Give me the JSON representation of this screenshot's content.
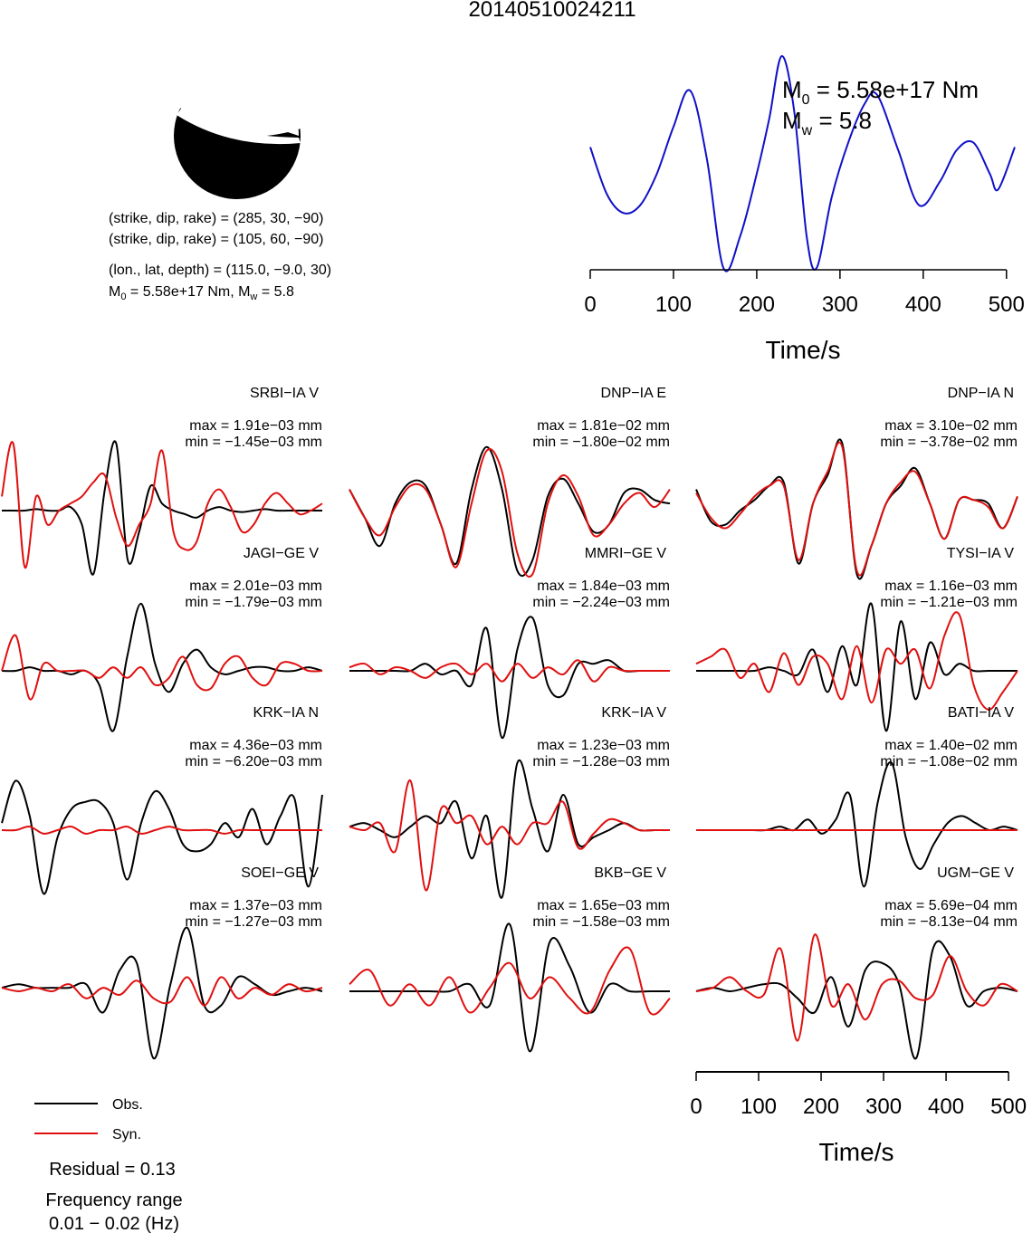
{
  "title": "20140510024211",
  "focal_mechanism": {
    "planes": [
      {
        "strike": 285,
        "dip": 30,
        "rake": -90
      },
      {
        "strike": 105,
        "dip": 60,
        "rake": -90
      }
    ],
    "plane1_text": "(strike, dip, rake) = (285, 30, −90)",
    "plane2_text": "(strike, dip, rake) = (105, 60, −90)",
    "location_text": "(lon., lat, depth) = (115.0, −9.0, 30)",
    "moment_text_m": "M",
    "moment_text_sub": "0",
    "moment_text_rest": " = 5.58e+17 Nm, M",
    "moment_text_sub2": "w",
    "moment_text_end": " = 5.8"
  },
  "stf": {
    "m0_main": "M",
    "m0_sub": "0",
    "m0_value": " = 5.58e+17 Nm",
    "mw_main": "M",
    "mw_sub": "w",
    "mw_value": " = 5.8",
    "xlabel": "Time/s",
    "color": "#1010c8"
  },
  "chart_data": [
    {
      "type": "line",
      "title": "",
      "xlabel": "Time/s",
      "ylabel": "",
      "xlim": [
        0,
        510
      ],
      "ticks": [
        0,
        100,
        200,
        300,
        400,
        500
      ],
      "series": [
        {
          "values_x": [
            0,
            20,
            40,
            60,
            80,
            100,
            120,
            140,
            160,
            180,
            200,
            215,
            230,
            245,
            260,
            272,
            290,
            310,
            330,
            345,
            370,
            395,
            420,
            440,
            460,
            480,
            490,
            510
          ],
          "values_y": [
            0.42,
            0.12,
            0.0,
            0.05,
            0.25,
            0.55,
            0.78,
            0.35,
            -0.35,
            -0.15,
            0.25,
            0.6,
            1.0,
            0.65,
            -0.15,
            -0.35,
            0.1,
            0.45,
            0.7,
            0.75,
            0.4,
            0.05,
            0.2,
            0.4,
            0.45,
            0.25,
            0.15,
            0.42
          ]
        }
      ]
    },
    {
      "type": "line",
      "xlabel": "Time/s",
      "xlim": [
        0,
        510
      ],
      "ticks": [
        0,
        100,
        200,
        300,
        400,
        500
      ],
      "legend": [
        {
          "label": "Obs.",
          "color": "#000000"
        },
        {
          "label": "Syn.",
          "color": "#e01010"
        }
      ],
      "panels": [
        {
          "station": "SRBI−IA V",
          "max": "max = 1.91e−03 mm",
          "min": "min = −1.45e−03 mm",
          "obs": [
            0,
            0,
            0,
            0.02,
            0,
            0,
            0.05,
            -0.2,
            -0.9,
            0.3,
            0.95,
            -0.7,
            -0.3,
            0.35,
            0.1,
            0,
            -0.05,
            -0.1,
            0,
            0.05,
            0,
            -0.02,
            0,
            0.02,
            0,
            0,
            0,
            0,
            0
          ],
          "syn": [
            0.2,
            0.95,
            -0.8,
            0.2,
            -0.2,
            0,
            0.1,
            0.2,
            0.4,
            0.5,
            -0.1,
            -0.5,
            -0.2,
            0.1,
            0.85,
            -0.3,
            -0.55,
            -0.45,
            0.1,
            0.3,
            0.05,
            -0.3,
            -0.2,
            0.1,
            0.25,
            0.1,
            -0.05,
            0,
            0.1
          ]
        },
        {
          "station": "DNP−IA E",
          "max": "max = 1.81e−02 mm",
          "min": "min = −1.80e−02 mm",
          "obs": [
            0.3,
            -0.1,
            -0.5,
            0.1,
            0.4,
            0.35,
            -0.2,
            -0.75,
            0.3,
            0.9,
            0.3,
            -0.85,
            -0.7,
            0.2,
            0.45,
            0.1,
            -0.3,
            -0.2,
            0.25,
            0.3,
            0.15,
            0.1
          ],
          "syn": [
            0.3,
            -0.1,
            -0.35,
            0.05,
            0.35,
            0.3,
            -0.2,
            -0.8,
            0.1,
            0.85,
            0.55,
            -0.6,
            -0.9,
            0.1,
            0.5,
            0.2,
            -0.35,
            -0.2,
            0.1,
            0.25,
            0.05,
            0.3
          ]
        },
        {
          "station": "DNP−IA N",
          "max": "max = 3.10e−02 mm",
          "min": "min = −3.78e−02 mm",
          "obs": [
            0.3,
            -0.15,
            -0.2,
            0.0,
            0.15,
            0.35,
            0.4,
            -0.75,
            0.1,
            0.5,
            0.95,
            -0.9,
            -0.5,
            0.1,
            0.35,
            0.6,
            0.1,
            -0.4,
            0.15,
            0.15,
            0.1,
            -0.25,
            0.2
          ],
          "syn": [
            0.25,
            -0.1,
            -0.25,
            -0.05,
            0.2,
            0.35,
            0.35,
            -0.7,
            0.1,
            0.55,
            0.9,
            -0.85,
            -0.5,
            0.1,
            0.4,
            0.55,
            0.1,
            -0.4,
            0.15,
            0.15,
            0.05,
            -0.25,
            0.2
          ]
        },
        {
          "station": "JAGI−GE V",
          "max": "max = 2.01e−03 mm",
          "min": "min = −1.79e−03 mm",
          "obs": [
            0,
            0,
            0.05,
            0,
            0,
            -0.05,
            0,
            -0.2,
            -0.85,
            0.2,
            0.95,
            0.1,
            -0.3,
            0.1,
            0.3,
            0.05,
            -0.05,
            0,
            0.05,
            0.05,
            0,
            0,
            0.05,
            0
          ],
          "syn": [
            0,
            0.5,
            -0.4,
            0.1,
            0,
            0,
            0,
            -0.1,
            0.05,
            -0.1,
            0.05,
            -0.2,
            -0.1,
            0.2,
            -0.2,
            -0.25,
            0.1,
            0.2,
            -0.1,
            -0.2,
            0.1,
            0.1,
            0,
            0
          ]
        },
        {
          "station": "MMRI−GE V",
          "max": "max = 1.84e−03 mm",
          "min": "min = −2.24e−03 mm",
          "obs": [
            0,
            0,
            0,
            0,
            0,
            0.1,
            -0.05,
            0,
            -0.2,
            0.6,
            -0.95,
            0.3,
            0.75,
            -0.2,
            -0.35,
            0.1,
            0.1,
            0.15,
            0,
            0,
            0,
            0
          ],
          "syn": [
            0.05,
            0.1,
            -0.05,
            0.05,
            0,
            -0.1,
            0.05,
            0.1,
            -0.05,
            0.1,
            -0.15,
            0.1,
            -0.1,
            0.05,
            -0.05,
            0.15,
            -0.15,
            0.05,
            0,
            0,
            0,
            0
          ]
        },
        {
          "station": "TYSI−IA V",
          "max": "max = 1.16e−03 mm",
          "min": "min = −1.21e−03 mm",
          "obs": [
            0,
            0,
            0,
            0,
            0,
            0.05,
            0,
            -0.05,
            0.3,
            -0.3,
            0.35,
            -0.2,
            0.95,
            -0.85,
            0.7,
            -0.4,
            0.4,
            -0.05,
            0.1,
            0,
            0,
            0,
            0
          ],
          "syn": [
            0.1,
            0.2,
            0.3,
            -0.1,
            0.1,
            -0.3,
            0.25,
            -0.2,
            0.2,
            0.1,
            -0.4,
            0.35,
            -0.45,
            0.3,
            0.1,
            0.3,
            -0.25,
            0.5,
            0.8,
            -0.2,
            -0.55,
            -0.3,
            0.0
          ]
        },
        {
          "station": "KRK−IA N",
          "max": "max = 4.36e−03 mm",
          "min": "min = −6.20e−03 mm",
          "obs": [
            0.1,
            0.7,
            0.2,
            -0.9,
            -0.1,
            0.3,
            0.4,
            0.4,
            0.1,
            -0.7,
            0.1,
            0.55,
            0.3,
            -0.2,
            -0.3,
            -0.2,
            0.1,
            -0.1,
            0.3,
            -0.2,
            0.2,
            0.45,
            -0.8,
            0.5
          ],
          "syn": [
            0,
            0,
            0.05,
            -0.05,
            0,
            0.05,
            -0.05,
            0,
            0,
            0.05,
            -0.05,
            0,
            0.05,
            0,
            0,
            0,
            -0.05,
            0,
            0,
            0,
            0,
            0,
            0,
            0
          ]
        },
        {
          "station": "KRK−IA V",
          "max": "max = 1.23e−03 mm",
          "min": "min = −1.28e−03 mm",
          "obs": [
            0.05,
            0.1,
            0,
            -0.1,
            0.05,
            0.2,
            0.1,
            0.4,
            -0.4,
            0.2,
            -0.95,
            0.95,
            0.3,
            -0.3,
            0.5,
            -0.2,
            -0.1,
            0,
            0.1,
            0,
            0,
            0
          ],
          "syn": [
            0.05,
            0.0,
            0.1,
            -0.3,
            0.7,
            -0.85,
            0.3,
            0.1,
            0.2,
            -0.2,
            0.05,
            -0.2,
            0.1,
            0.1,
            0.4,
            -0.25,
            -0.05,
            0.15,
            0.1,
            0,
            0,
            0
          ]
        },
        {
          "station": "BATI−IA V",
          "max": "max = 1.40e−02 mm",
          "min": "min = −1.08e−02 mm",
          "obs": [
            0,
            0,
            0,
            0,
            0,
            0,
            0.05,
            0,
            0.15,
            -0.05,
            0.15,
            0.5,
            -0.8,
            0.4,
            0.95,
            -0.1,
            -0.55,
            -0.2,
            0.1,
            0.2,
            0.1,
            0,
            0.05,
            0
          ],
          "syn": [
            0,
            0,
            0,
            0,
            0,
            0,
            0,
            0,
            0,
            0,
            0,
            0,
            0,
            0,
            0,
            0,
            0,
            0,
            0,
            0,
            0,
            0,
            0,
            0
          ]
        },
        {
          "station": "SOEI−GE V",
          "max": "max = 1.37e−03 mm",
          "min": "min = −1.27e−03 mm",
          "obs": [
            0.05,
            0.1,
            0.05,
            0.05,
            0.05,
            0.1,
            -0.3,
            0.3,
            0.4,
            -0.95,
            0.1,
            0.9,
            -0.2,
            -0.2,
            0.2,
            0.1,
            -0.05,
            0,
            0.05,
            0
          ],
          "syn": [
            0.05,
            0,
            0.05,
            0,
            0.1,
            -0.1,
            0.05,
            -0.05,
            0.15,
            -0.1,
            -0.15,
            0.2,
            -0.2,
            0.2,
            -0.1,
            0.05,
            -0.05,
            0.1,
            0.0,
            0.05
          ]
        },
        {
          "station": "BKB−GE V",
          "max": "max = 1.65e−03 mm",
          "min": "min = −1.58e−03 mm",
          "obs": [
            0,
            0,
            0,
            0,
            0,
            0,
            0.1,
            -0.2,
            0.95,
            -0.85,
            0.7,
            0.35,
            -0.3,
            0.1,
            0,
            0,
            0
          ],
          "syn": [
            0.1,
            0.3,
            -0.2,
            0.1,
            -0.2,
            0.2,
            -0.3,
            0.05,
            0.4,
            -0.1,
            0.2,
            -0.1,
            -0.3,
            0.3,
            0.6,
            -0.3,
            -0.1
          ]
        },
        {
          "station": "UGM−GE V",
          "max": "max = 5.69e−04 mm",
          "min": "min = −8.13e−04 mm",
          "obs": [
            0,
            0.05,
            0,
            0.05,
            0.1,
            0.1,
            -0.1,
            -0.3,
            0.2,
            -0.5,
            0.3,
            0.4,
            0.1,
            -0.95,
            0.6,
            0.5,
            -0.2,
            0.0,
            0.05,
            0
          ],
          "syn": [
            0,
            0.05,
            0.2,
            0,
            -0.05,
            0.6,
            -0.7,
            0.8,
            -0.2,
            0.1,
            -0.4,
            0.1,
            0.15,
            -0.1,
            -0.05,
            0.5,
            0.0,
            -0.2,
            0.1,
            0
          ]
        }
      ]
    }
  ],
  "legend": {
    "obs_label": "Obs.",
    "syn_label": "Syn.",
    "residual": "Residual = 0.13",
    "freq_line1": "Frequency range",
    "freq_line2": "0.01 − 0.02 (Hz)"
  }
}
